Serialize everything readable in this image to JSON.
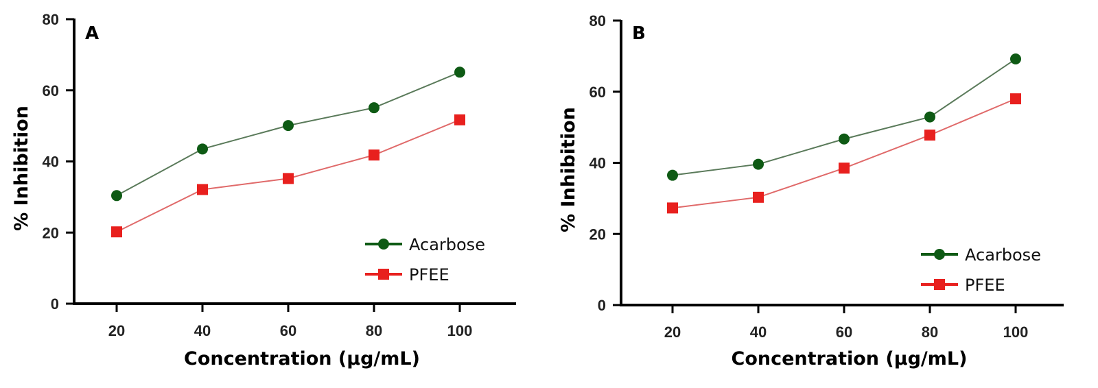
{
  "chart_data": [
    {
      "type": "line",
      "panel_label": "A",
      "xlabel": "Concentration (µg/mL)",
      "ylabel": "% Inhibition",
      "x": [
        20,
        40,
        60,
        80,
        100
      ],
      "x_ticks": [
        "20",
        "40",
        "60",
        "80",
        "100"
      ],
      "y_ticks": [
        "0",
        "20",
        "40",
        "60",
        "80"
      ],
      "ylim": [
        0,
        80
      ],
      "grid": false,
      "legend_position": "bottom-right",
      "series": [
        {
          "name": "Acarbose",
          "marker": "circle",
          "color": "#0e5a14",
          "line_color": "#5a7a5a",
          "values": [
            30.4,
            43.5,
            50.1,
            55.1,
            65.1
          ]
        },
        {
          "name": "PFEE",
          "marker": "square",
          "color": "#e8201e",
          "line_color": "#e06a6a",
          "values": [
            20.2,
            32.1,
            35.2,
            41.8,
            51.7
          ]
        }
      ]
    },
    {
      "type": "line",
      "panel_label": "B",
      "xlabel": "Concentration (µg/mL)",
      "ylabel": "% Inhibition",
      "x": [
        20,
        40,
        60,
        80,
        100
      ],
      "x_ticks": [
        "20",
        "40",
        "60",
        "80",
        "100"
      ],
      "y_ticks": [
        "0",
        "20",
        "40",
        "60",
        "80"
      ],
      "ylim": [
        0,
        80
      ],
      "grid": false,
      "legend_position": "bottom-right",
      "series": [
        {
          "name": "Acarbose",
          "marker": "circle",
          "color": "#0e5a14",
          "line_color": "#5a7a5a",
          "values": [
            36.5,
            39.6,
            46.7,
            52.9,
            69.2
          ]
        },
        {
          "name": "PFEE",
          "marker": "square",
          "color": "#e8201e",
          "line_color": "#e06a6a",
          "values": [
            27.3,
            30.3,
            38.5,
            47.8,
            58.0
          ]
        }
      ]
    }
  ]
}
